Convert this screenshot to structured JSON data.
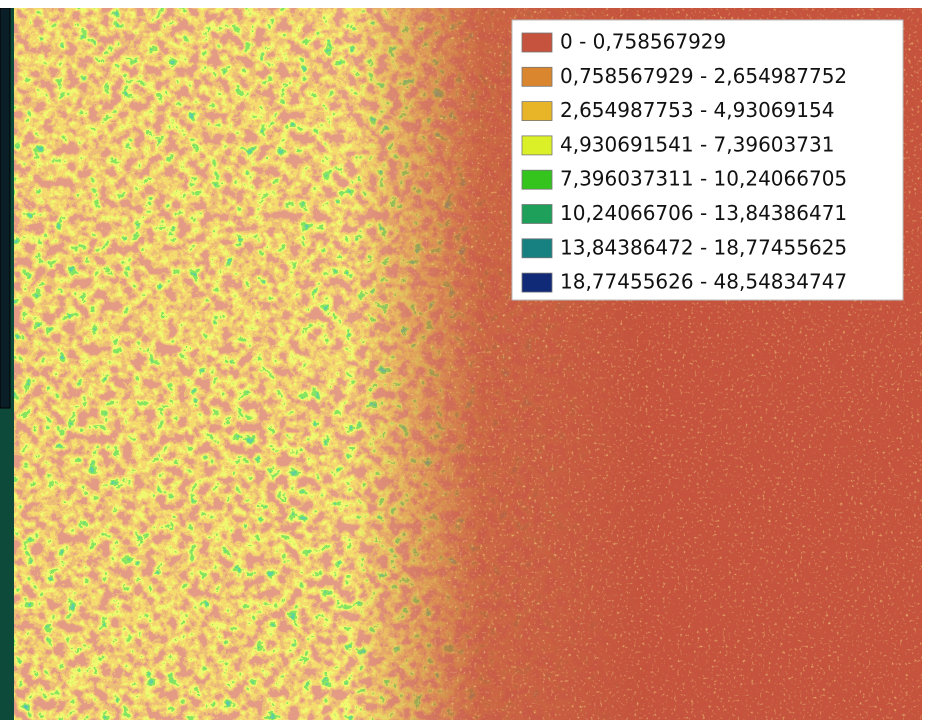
{
  "legend": {
    "items": [
      {
        "label": "0 - 0,758567929",
        "color": "#c5533d"
      },
      {
        "label": "0,758567929 - 2,654987752",
        "color": "#d9862e"
      },
      {
        "label": "2,654987753 - 4,93069154",
        "color": "#e9b528"
      },
      {
        "label": "4,930691541 - 7,39603731",
        "color": "#dcf028"
      },
      {
        "label": "7,396037311 - 10,24066705",
        "color": "#35c41e"
      },
      {
        "label": "10,24066706 - 13,84386471",
        "color": "#1fa05a"
      },
      {
        "label": "13,84386472 - 18,77455625",
        "color": "#178080"
      },
      {
        "label": "18,77455626 - 48,54834747",
        "color": "#102a78"
      }
    ]
  }
}
